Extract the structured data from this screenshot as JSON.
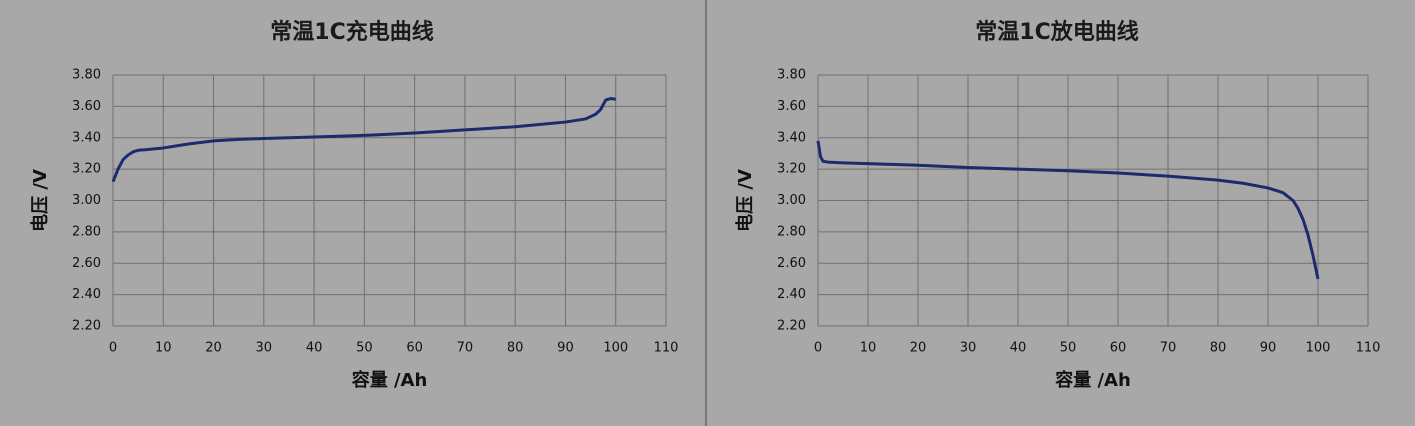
{
  "chart_data": [
    {
      "type": "line",
      "title": "常温1C充电曲线",
      "x_label": "容量 /Ah",
      "y_label": "电压 /V",
      "x": [
        0,
        1,
        2,
        3,
        4,
        5,
        7,
        10,
        15,
        20,
        25,
        30,
        40,
        50,
        60,
        70,
        80,
        90,
        94,
        96,
        97,
        98,
        99,
        100
      ],
      "series": [
        {
          "name": "",
          "color": "#1c2a6e",
          "values": [
            3.12,
            3.2,
            3.26,
            3.29,
            3.31,
            3.32,
            3.325,
            3.335,
            3.36,
            3.38,
            3.39,
            3.395,
            3.405,
            3.415,
            3.43,
            3.45,
            3.47,
            3.5,
            3.52,
            3.55,
            3.58,
            3.64,
            3.65,
            3.645
          ]
        }
      ],
      "xlim": [
        0,
        110
      ],
      "xticks": [
        0,
        10,
        20,
        30,
        40,
        50,
        60,
        70,
        80,
        90,
        100,
        110
      ],
      "ylim": [
        2.2,
        3.8
      ],
      "yticks": [
        {
          "value": 2.2,
          "label": "2.20"
        },
        {
          "value": 2.4,
          "label": "2.40"
        },
        {
          "value": 2.6,
          "label": "2.60"
        },
        {
          "value": 2.8,
          "label": "2.80"
        },
        {
          "value": 3.0,
          "label": "3.00"
        },
        {
          "value": 3.2,
          "label": "3.20"
        },
        {
          "value": 3.4,
          "label": "3.40"
        },
        {
          "value": 3.6,
          "label": "3.60"
        },
        {
          "value": 3.8,
          "label": "3.80"
        }
      ],
      "grid": true
    },
    {
      "type": "line",
      "title": "常温1C放电曲线",
      "x_label": "容量 /Ah",
      "y_label": "电压 /V",
      "x": [
        0,
        0.5,
        1,
        2,
        5,
        10,
        20,
        30,
        40,
        50,
        60,
        70,
        80,
        85,
        90,
        93,
        95,
        96,
        97,
        98,
        99,
        100
      ],
      "series": [
        {
          "name": "",
          "color": "#1c2a6e",
          "values": [
            3.38,
            3.28,
            3.25,
            3.245,
            3.24,
            3.235,
            3.225,
            3.21,
            3.2,
            3.19,
            3.175,
            3.155,
            3.13,
            3.11,
            3.08,
            3.05,
            3.0,
            2.95,
            2.88,
            2.78,
            2.65,
            2.5
          ]
        }
      ],
      "xlim": [
        0,
        110
      ],
      "xticks": [
        0,
        10,
        20,
        30,
        40,
        50,
        60,
        70,
        80,
        90,
        100,
        110
      ],
      "ylim": [
        2.2,
        3.8
      ],
      "yticks": [
        {
          "value": 2.2,
          "label": "2.20"
        },
        {
          "value": 2.4,
          "label": "2.40"
        },
        {
          "value": 2.6,
          "label": "2.60"
        },
        {
          "value": 2.8,
          "label": "2.80"
        },
        {
          "value": 3.0,
          "label": "3.00"
        },
        {
          "value": 3.2,
          "label": "3.20"
        },
        {
          "value": 3.4,
          "label": "3.40"
        },
        {
          "value": 3.6,
          "label": "3.60"
        },
        {
          "value": 3.8,
          "label": "3.80"
        }
      ],
      "grid": true
    }
  ]
}
